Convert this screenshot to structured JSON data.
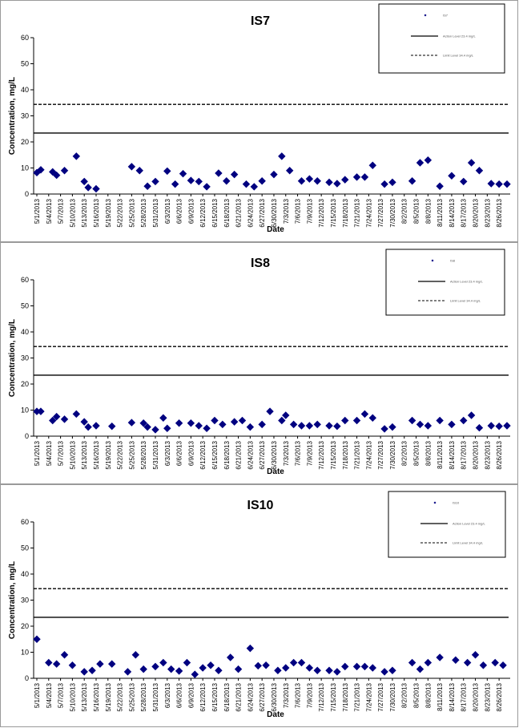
{
  "chart_data": [
    {
      "type": "scatter",
      "title": "IS7",
      "xlabel": "Date",
      "ylabel": "Concentration, mg/L",
      "ylim": [
        0,
        60
      ],
      "yticks": [
        0,
        10,
        20,
        30,
        40,
        50,
        60
      ],
      "grid": false,
      "legend_position": "top-right",
      "x_tick_labels": [
        "5/1/2013",
        "5/4/2013",
        "5/7/2013",
        "5/10/2013",
        "5/13/2013",
        "5/16/2013",
        "5/19/2013",
        "5/22/2013",
        "5/25/2013",
        "5/28/2013",
        "5/31/2013",
        "6/3/2013",
        "6/6/2013",
        "6/9/2013",
        "6/12/2013",
        "6/15/2013",
        "6/18/2013",
        "6/21/2013",
        "6/24/2013",
        "6/27/2013",
        "6/30/2013",
        "7/3/2013",
        "7/6/2013",
        "7/9/2013",
        "7/12/2013",
        "7/15/2013",
        "7/18/2013",
        "7/21/2013",
        "7/24/2013",
        "7/27/2013",
        "7/30/2013",
        "8/2/2013",
        "8/5/2013",
        "8/8/2013",
        "8/11/2013",
        "8/14/2013",
        "8/17/2013",
        "8/20/2013",
        "8/23/2013",
        "8/26/2013"
      ],
      "x": [
        "5/1/2013",
        "5/2/2013",
        "5/5/2013",
        "5/6/2013",
        "5/8/2013",
        "5/11/2013",
        "5/13/2013",
        "5/14/2013",
        "5/16/2013",
        "5/25/2013",
        "5/27/2013",
        "5/29/2013",
        "5/31/2013",
        "6/3/2013",
        "6/5/2013",
        "6/7/2013",
        "6/9/2013",
        "6/11/2013",
        "6/13/2013",
        "6/16/2013",
        "6/18/2013",
        "6/20/2013",
        "6/23/2013",
        "6/25/2013",
        "6/27/2013",
        "6/30/2013",
        "7/2/2013",
        "7/4/2013",
        "7/7/2013",
        "7/9/2013",
        "7/11/2013",
        "7/14/2013",
        "7/16/2013",
        "7/18/2013",
        "7/21/2013",
        "7/23/2013",
        "7/25/2013",
        "7/28/2013",
        "7/30/2013",
        "8/4/2013",
        "8/6/2013",
        "8/8/2013",
        "8/11/2013",
        "8/14/2013",
        "8/17/2013",
        "8/19/2013",
        "8/21/2013",
        "8/24/2013",
        "8/26/2013",
        "8/28/2013",
        "5/18/2013",
        "5/21/2013"
      ],
      "series": [
        {
          "name": "IS7",
          "marker": "diamond",
          "color": "#000080",
          "values": [
            8.2,
            9.3,
            8.5,
            7.2,
            9.0,
            14.5,
            4.8,
            2.5,
            2.0,
            10.5,
            9.0,
            3.0,
            4.8,
            8.8,
            3.8,
            7.8,
            5.2,
            4.8,
            2.8,
            8.0,
            5.0,
            7.5,
            3.8,
            2.8,
            5.0,
            7.5,
            14.5,
            9.0,
            5.0,
            5.8,
            5.0,
            4.5,
            4.0,
            5.5,
            6.5,
            6.5,
            11.0,
            3.8,
            4.5,
            5.0,
            12.0,
            13.0,
            3.0,
            7.0,
            4.8,
            12.0,
            9.0,
            4.0,
            3.8,
            3.8,
            null,
            null
          ]
        },
        {
          "name": "Action Level 23.4 mg/L",
          "type": "hline",
          "style": "solid",
          "value": 23.4
        },
        {
          "name": "Limit Level 34.4 mg/L",
          "type": "hline",
          "style": "dashed",
          "value": 34.4
        }
      ]
    },
    {
      "type": "scatter",
      "title": "IS8",
      "xlabel": "Date",
      "ylabel": "Concentration, mg/L",
      "ylim": [
        0,
        60
      ],
      "yticks": [
        0,
        10,
        20,
        30,
        40,
        50,
        60
      ],
      "grid": false,
      "legend_position": "top-right",
      "x_tick_labels": [
        "5/1/2013",
        "5/4/2013",
        "5/7/2013",
        "5/10/2013",
        "5/13/2013",
        "5/16/2013",
        "5/19/2013",
        "5/22/2013",
        "5/25/2013",
        "5/28/2013",
        "5/31/2013",
        "6/3/2013",
        "6/6/2013",
        "6/9/2013",
        "6/12/2013",
        "6/15/2013",
        "6/18/2013",
        "6/21/2013",
        "6/24/2013",
        "6/27/2013",
        "6/30/2013",
        "7/3/2013",
        "7/6/2013",
        "7/9/2013",
        "7/12/2013",
        "7/15/2013",
        "7/18/2013",
        "7/21/2013",
        "7/24/2013",
        "7/27/2013",
        "7/30/2013",
        "8/2/2013",
        "8/5/2013",
        "8/8/2013",
        "8/11/2013",
        "8/14/2013",
        "8/17/2013",
        "8/20/2013",
        "8/23/2013",
        "8/26/2013"
      ],
      "x": [
        "5/1/2013",
        "5/2/2013",
        "5/5/2013",
        "5/6/2013",
        "5/8/2013",
        "5/11/2013",
        "5/13/2013",
        "5/14/2013",
        "5/16/2013",
        "5/20/2013",
        "5/25/2013",
        "5/28/2013",
        "5/29/2013",
        "5/31/2013",
        "6/2/2013",
        "6/3/2013",
        "6/6/2013",
        "6/9/2013",
        "6/11/2013",
        "6/13/2013",
        "6/15/2013",
        "6/17/2013",
        "6/20/2013",
        "6/22/2013",
        "6/24/2013",
        "6/27/2013",
        "6/29/2013",
        "7/2/2013",
        "7/3/2013",
        "7/5/2013",
        "7/7/2013",
        "7/9/2013",
        "7/11/2013",
        "7/14/2013",
        "7/16/2013",
        "7/18/2013",
        "7/21/2013",
        "7/23/2013",
        "7/25/2013",
        "7/28/2013",
        "7/30/2013",
        "8/4/2013",
        "8/6/2013",
        "8/8/2013",
        "8/11/2013",
        "8/14/2013",
        "8/17/2013",
        "8/19/2013",
        "8/21/2013",
        "8/24/2013",
        "8/26/2013",
        "8/28/2013"
      ],
      "series": [
        {
          "name": "IS8",
          "marker": "diamond",
          "color": "#000080",
          "values": [
            9.5,
            9.5,
            6.0,
            7.5,
            6.5,
            8.5,
            5.5,
            3.5,
            4.0,
            3.8,
            5.2,
            5.0,
            3.5,
            2.5,
            7.0,
            3.0,
            5.0,
            5.0,
            4.0,
            3.0,
            6.0,
            4.5,
            5.5,
            6.0,
            3.5,
            4.5,
            9.5,
            6.0,
            8.0,
            4.5,
            4.0,
            4.0,
            4.5,
            4.0,
            3.8,
            6.0,
            6.0,
            8.5,
            7.0,
            2.8,
            3.5,
            6.0,
            4.5,
            4.0,
            6.0,
            4.5,
            6.0,
            8.0,
            3.2,
            4.0,
            3.8,
            4.0
          ]
        },
        {
          "name": "Action Level 23.4 mg/L",
          "type": "hline",
          "style": "solid",
          "value": 23.4
        },
        {
          "name": "Limit Level 34.4 mg/L",
          "type": "hline",
          "style": "dashed",
          "value": 34.4
        }
      ]
    },
    {
      "type": "scatter",
      "title": "IS10",
      "xlabel": "Date",
      "ylabel": "Concentration, mg/L",
      "ylim": [
        0,
        60
      ],
      "yticks": [
        0,
        10,
        20,
        30,
        40,
        50,
        60
      ],
      "grid": false,
      "legend_position": "top-right",
      "x_tick_labels": [
        "5/1/2013",
        "5/4/2013",
        "5/7/2013",
        "5/10/2013",
        "5/13/2013",
        "5/16/2013",
        "5/19/2013",
        "5/22/2013",
        "5/25/2013",
        "5/28/2013",
        "5/31/2013",
        "6/3/2013",
        "6/6/2013",
        "6/9/2013",
        "6/12/2013",
        "6/15/2013",
        "6/18/2013",
        "6/21/2013",
        "6/24/2013",
        "6/27/2013",
        "6/30/2013",
        "7/3/2013",
        "7/6/2013",
        "7/9/2013",
        "7/12/2013",
        "7/15/2013",
        "7/18/2013",
        "7/21/2013",
        "7/24/2013",
        "7/27/2013",
        "7/30/2013",
        "8/2/2013",
        "8/5/2013",
        "8/8/2013",
        "8/11/2013",
        "8/14/2013",
        "8/17/2013",
        "8/20/2013",
        "8/23/2013",
        "8/26/2013"
      ],
      "x": [
        "5/1/2013",
        "5/4/2013",
        "5/6/2013",
        "5/8/2013",
        "5/10/2013",
        "5/13/2013",
        "5/15/2013",
        "5/17/2013",
        "5/20/2013",
        "5/24/2013",
        "5/26/2013",
        "5/28/2013",
        "5/31/2013",
        "6/2/2013",
        "6/4/2013",
        "6/6/2013",
        "6/8/2013",
        "6/10/2013",
        "6/12/2013",
        "6/14/2013",
        "6/16/2013",
        "6/19/2013",
        "6/21/2013",
        "6/24/2013",
        "6/26/2013",
        "6/28/2013",
        "7/1/2013",
        "7/3/2013",
        "7/5/2013",
        "7/7/2013",
        "7/9/2013",
        "7/11/2013",
        "7/14/2013",
        "7/16/2013",
        "7/18/2013",
        "7/21/2013",
        "7/23/2013",
        "7/25/2013",
        "7/28/2013",
        "7/30/2013",
        "8/4/2013",
        "8/6/2013",
        "8/8/2013",
        "8/11/2013",
        "8/15/2013",
        "8/18/2013",
        "8/20/2013",
        "8/22/2013",
        "8/25/2013",
        "8/27/2013"
      ],
      "series": [
        {
          "name": "IS10",
          "marker": "diamond",
          "color": "#000080",
          "values": [
            15.0,
            6.0,
            5.5,
            9.0,
            5.0,
            2.5,
            3.0,
            5.5,
            5.5,
            2.5,
            9.0,
            3.5,
            4.5,
            6.0,
            3.5,
            2.8,
            6.0,
            1.5,
            4.0,
            5.0,
            3.0,
            8.0,
            3.5,
            11.5,
            4.8,
            5.0,
            3.0,
            4.0,
            6.0,
            6.0,
            4.0,
            3.0,
            3.0,
            2.5,
            4.5,
            4.5,
            4.5,
            4.0,
            2.5,
            3.0,
            6.0,
            3.5,
            6.0,
            8.0,
            7.0,
            6.0,
            9.0,
            5.0,
            6.0,
            5.0
          ]
        },
        {
          "name": "Action Level 23.4 mg/L",
          "type": "hline",
          "style": "solid",
          "value": 23.4
        },
        {
          "name": "Limit Level 34.4 mg/L",
          "type": "hline",
          "style": "dashed",
          "value": 34.4
        }
      ]
    }
  ]
}
